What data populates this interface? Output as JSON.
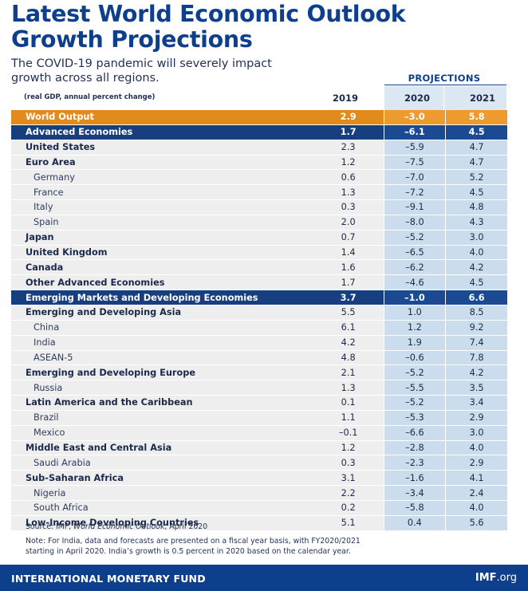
{
  "title_line1": "Latest World Economic Outlook",
  "title_line2": "Growth Projections",
  "subtitle_line1": "The COVID-19 pandemic will severely impact",
  "subtitle_line2": "growth across all regions.",
  "projections_label": "PROJECTIONS",
  "units_note": "(real GDP, annual percent change)",
  "columns": [
    "2019",
    "2020",
    "2021"
  ],
  "rows": [
    {
      "name": "World Output",
      "v2019": "2.9",
      "v2020": "–3.0",
      "v2021": "5.8",
      "style": "orange"
    },
    {
      "name": "Advanced Economies",
      "v2019": "1.7",
      "v2020": "–6.1",
      "v2021": "4.5",
      "style": "blue"
    },
    {
      "name": "United States",
      "v2019": "2.3",
      "v2020": "–5.9",
      "v2021": "4.7",
      "style": "bold"
    },
    {
      "name": "Euro Area",
      "v2019": "1.2",
      "v2020": "–7.5",
      "v2021": "4.7",
      "style": "bold"
    },
    {
      "name": "Germany",
      "v2019": "0.6",
      "v2020": "–7.0",
      "v2021": "5.2",
      "style": "indent"
    },
    {
      "name": "France",
      "v2019": "1.3",
      "v2020": "–7.2",
      "v2021": "4.5",
      "style": "indent"
    },
    {
      "name": "Italy",
      "v2019": "0.3",
      "v2020": "–9.1",
      "v2021": "4.8",
      "style": "indent"
    },
    {
      "name": "Spain",
      "v2019": "2.0",
      "v2020": "–8.0",
      "v2021": "4.3",
      "style": "indent"
    },
    {
      "name": "Japan",
      "v2019": "0.7",
      "v2020": "–5.2",
      "v2021": "3.0",
      "style": "bold"
    },
    {
      "name": "United Kingdom",
      "v2019": "1.4",
      "v2020": "–6.5",
      "v2021": "4.0",
      "style": "bold"
    },
    {
      "name": "Canada",
      "v2019": "1.6",
      "v2020": "–6.2",
      "v2021": "4.2",
      "style": "bold"
    },
    {
      "name": "Other Advanced Economies",
      "v2019": "1.7",
      "v2020": "–4.6",
      "v2021": "4.5",
      "style": "bold"
    },
    {
      "name": "Emerging Markets and Developing Economies",
      "v2019": "3.7",
      "v2020": "–1.0",
      "v2021": "6.6",
      "style": "blue"
    },
    {
      "name": "Emerging and Developing Asia",
      "v2019": "5.5",
      "v2020": "1.0",
      "v2021": "8.5",
      "style": "bold"
    },
    {
      "name": "China",
      "v2019": "6.1",
      "v2020": "1.2",
      "v2021": "9.2",
      "style": "indent"
    },
    {
      "name": "India",
      "v2019": "4.2",
      "v2020": "1.9",
      "v2021": "7.4",
      "style": "indent"
    },
    {
      "name": "ASEAN-5",
      "v2019": "4.8",
      "v2020": "–0.6",
      "v2021": "7.8",
      "style": "indent"
    },
    {
      "name": "Emerging and Developing Europe",
      "v2019": "2.1",
      "v2020": "–5.2",
      "v2021": "4.2",
      "style": "bold"
    },
    {
      "name": "Russia",
      "v2019": "1.3",
      "v2020": "–5.5",
      "v2021": "3.5",
      "style": "indent"
    },
    {
      "name": "Latin America and the Caribbean",
      "v2019": "0.1",
      "v2020": "–5.2",
      "v2021": "3.4",
      "style": "bold"
    },
    {
      "name": "Brazil",
      "v2019": "1.1",
      "v2020": "–5.3",
      "v2021": "2.9",
      "style": "indent"
    },
    {
      "name": "Mexico",
      "v2019": "–0.1",
      "v2020": "–6.6",
      "v2021": "3.0",
      "style": "indent"
    },
    {
      "name": "Middle East and Central Asia",
      "v2019": "1.2",
      "v2020": "–2.8",
      "v2021": "4.0",
      "style": "bold"
    },
    {
      "name": "Saudi Arabia",
      "v2019": "0.3",
      "v2020": "–2.3",
      "v2021": "2.9",
      "style": "indent"
    },
    {
      "name": "Sub-Saharan Africa",
      "v2019": "3.1",
      "v2020": "–1.6",
      "v2021": "4.1",
      "style": "bold"
    },
    {
      "name": "Nigeria",
      "v2019": "2.2",
      "v2020": "–3.4",
      "v2021": "2.4",
      "style": "indent"
    },
    {
      "name": "South Africa",
      "v2019": "0.2",
      "v2020": "–5.8",
      "v2021": "4.0",
      "style": "indent"
    },
    {
      "name": "Low-Income Developing Countries",
      "v2019": "5.1",
      "v2020": "0.4",
      "v2021": "5.6",
      "style": "bold"
    }
  ],
  "source_prefix": "Source: IMF, ",
  "source_pub": "World Economic Outlook",
  "source_suffix": ", April 2020",
  "note_line1": "Note: For India, data and forecasts are presented on a fiscal year basis, with FY2020/2021",
  "note_line2": "starting in April 2020. India’s growth is 0.5 percent in 2020 based on the calendar year.",
  "footer_org": "INTERNATIONAL MONETARY FUND",
  "footer_site_bold": "IMF",
  "footer_site_rest": ".org",
  "colors": {
    "orange": "#e38a1d",
    "navy": "#173f80",
    "title_blue": "#0e3f8c",
    "projection_bg": "#cbdcec"
  }
}
